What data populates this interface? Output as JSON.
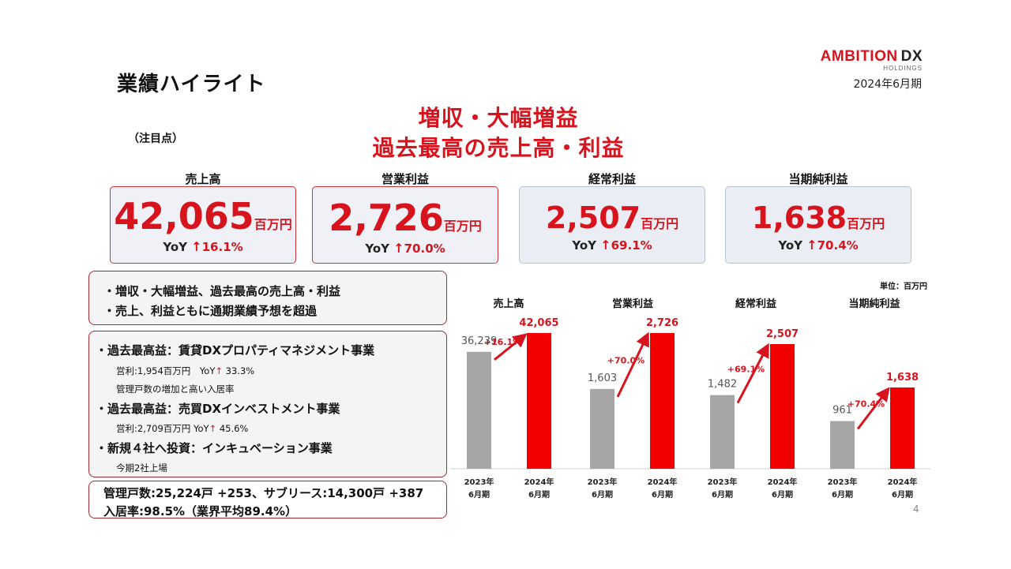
{
  "header": {
    "title": "業績ハイライト",
    "logo_main": "AMBITION",
    "logo_dx": "DX",
    "logo_sub": "HOLDINGS",
    "period": "2024年6月期"
  },
  "headline": {
    "line1": "増収・大幅増益",
    "line2": "過去最高の売上高・利益"
  },
  "focus_label": "（注目点）",
  "kpis": [
    {
      "label": "売上高",
      "value": "42,065",
      "unit": "百万円",
      "yoy_prefix": "YoY",
      "yoy": "16.1%"
    },
    {
      "label": "営業利益",
      "value": "2,726",
      "unit": "百万円",
      "yoy_prefix": "YoY",
      "yoy": "70.0%"
    },
    {
      "label": "経常利益",
      "value": "2,507",
      "unit": "百万円",
      "yoy_prefix": "YoY",
      "yoy": "69.1%"
    },
    {
      "label": "当期純利益",
      "value": "1,638",
      "unit": "百万円",
      "yoy_prefix": "YoY",
      "yoy": "70.4%"
    }
  ],
  "box1": {
    "line1": "・増収・大幅増益、過去最高の売上高・利益",
    "line2": "・売上、利益ともに通期業績予想を超過"
  },
  "box2": {
    "seg1_title": "・過去最高益：賃貸DXプロパティマネジメント事業",
    "seg1_detail_a": "営利:1,954百万円　YoY",
    "seg1_detail_b": "33.3%",
    "seg1_note": "管理戸数の増加と高い入居率",
    "seg2_title": "・過去最高益：売買DXインベストメント事業",
    "seg2_detail_a": "営利:2,709百万円 YoY",
    "seg2_detail_b": "45.6%",
    "seg3_title": "・新規４社へ投資：インキュベーション事業",
    "seg3_note": "今期2社上場"
  },
  "box3": {
    "line1": "管理戸数:25,224戸 +253、サブリース:14,300戸 +387",
    "line2": "入居率:98.5%（業界平均89.4%）"
  },
  "unit_note": "単位：百万円",
  "page_number": "4",
  "colors": {
    "accent": "#d7141e",
    "bar_prior": "#a6a6a6",
    "bar_current": "#f20000"
  },
  "chart_data": [
    {
      "type": "bar",
      "title": "売上高",
      "categories": [
        "2023年6月期",
        "2024年6月期"
      ],
      "values": [
        36239,
        42065
      ],
      "labels": [
        "36,239",
        "42,065"
      ],
      "growth": "+16.1%"
    },
    {
      "type": "bar",
      "title": "営業利益",
      "categories": [
        "2023年6月期",
        "2024年6月期"
      ],
      "values": [
        1603,
        2726
      ],
      "labels": [
        "1,603",
        "2,726"
      ],
      "growth": "+70.0%"
    },
    {
      "type": "bar",
      "title": "経常利益",
      "categories": [
        "2023年6月期",
        "2024年6月期"
      ],
      "values": [
        1482,
        2507
      ],
      "labels": [
        "1,482",
        "2,507"
      ],
      "growth": "+69.1%"
    },
    {
      "type": "bar",
      "title": "当期純利益",
      "categories": [
        "2023年6月期",
        "2024年6月期"
      ],
      "values": [
        961,
        1638
      ],
      "labels": [
        "961",
        "1,638"
      ],
      "growth": "+70.4%"
    }
  ]
}
